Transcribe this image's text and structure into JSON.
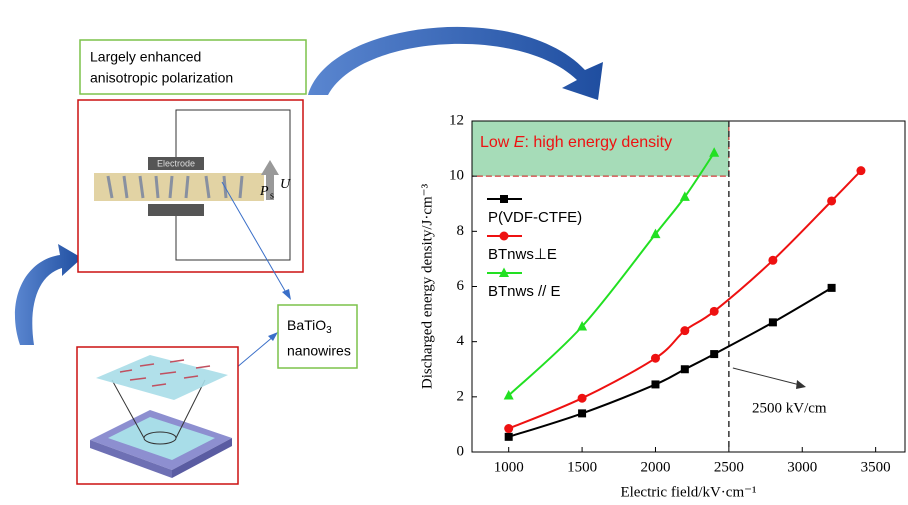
{
  "chart_data": {
    "type": "line",
    "x_label": "Electric field/kV·cm⁻¹",
    "y_label": "Discharged energy density/J·cm⁻³",
    "xlim": [
      750,
      3700
    ],
    "ylim": [
      0,
      12
    ],
    "xticks": [
      1000,
      1500,
      2000,
      2500,
      3000,
      3500
    ],
    "yticks": [
      0,
      2,
      4,
      6,
      8,
      10,
      12
    ],
    "series": [
      {
        "name": "P(VDF-CTFE)",
        "color": "#000000",
        "marker": "square",
        "x": [
          1000,
          1500,
          2000,
          2200,
          2400,
          2800,
          3200
        ],
        "values": [
          0.55,
          1.4,
          2.45,
          3.0,
          3.55,
          4.7,
          5.95
        ]
      },
      {
        "name": "BTnws⊥E",
        "color": "#ee1111",
        "marker": "circle",
        "x": [
          1000,
          1500,
          2000,
          2200,
          2400,
          2800,
          3200,
          3400
        ],
        "values": [
          0.85,
          1.95,
          3.4,
          4.4,
          5.1,
          6.95,
          9.1,
          10.2
        ]
      },
      {
        "name": "BTnws // E",
        "color": "#22e022",
        "marker": "triangle",
        "x": [
          1000,
          1500,
          2000,
          2200,
          2400
        ],
        "values": [
          2.05,
          4.55,
          7.9,
          9.25,
          10.85
        ]
      }
    ],
    "highlight": {
      "label_pre": "Low ",
      "label_var": "E",
      "label_post": ": high energy density",
      "xlim": [
        750,
        2500
      ],
      "ylim": [
        10,
        12
      ]
    },
    "threshold": {
      "value": 2500,
      "label": "2500 kV/cm"
    }
  },
  "diagram": {
    "polarization_label": [
      "Largely enhanced",
      "anisotropic polarization"
    ],
    "electrode": "Electrode",
    "p_label": "P",
    "p_sub": "s",
    "u_label": "U",
    "nanowire_label": [
      "BaTiO",
      "3",
      "nanowires"
    ]
  }
}
